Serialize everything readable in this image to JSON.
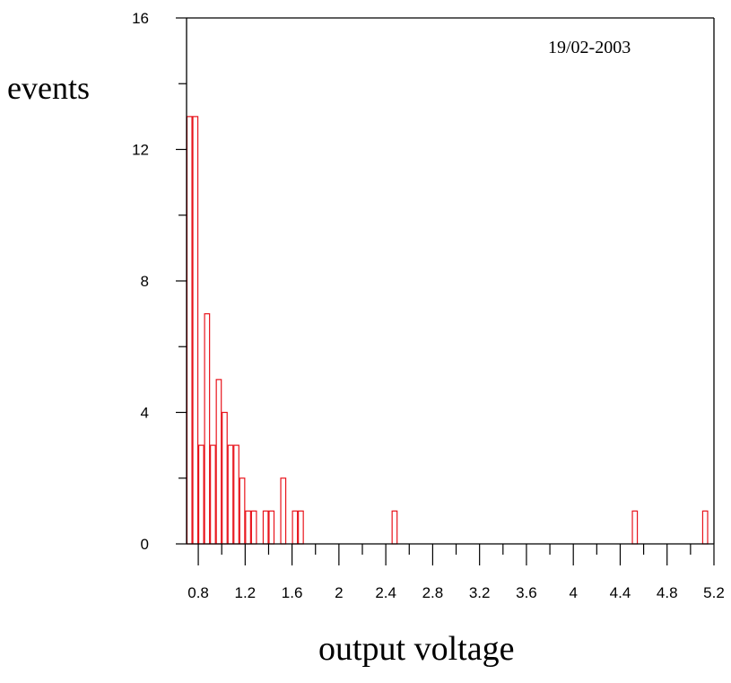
{
  "chart_data": {
    "type": "bar",
    "title": "",
    "annotation": "19/02-2003",
    "xlabel": "output voltage",
    "ylabel": "events",
    "xlim": [
      0.7,
      5.2
    ],
    "ylim": [
      0,
      16
    ],
    "bin_width": 0.05,
    "x_ticks_labeled": [
      "0.8",
      "1.2",
      "1.6",
      "2",
      "2.4",
      "2.8",
      "3.2",
      "3.6",
      "4",
      "4.4",
      "4.8",
      "5.2"
    ],
    "x_tick_values": [
      0.8,
      1.2,
      1.6,
      2.0,
      2.4,
      2.8,
      3.2,
      3.6,
      4.0,
      4.4,
      4.8,
      5.2
    ],
    "y_ticks_labeled": [
      "0",
      "4",
      "8",
      "12",
      "16"
    ],
    "y_tick_values": [
      0,
      4,
      8,
      12,
      16
    ],
    "bar_color": "#e8141c",
    "bins": [
      {
        "x": 0.7,
        "count": 13
      },
      {
        "x": 0.75,
        "count": 13
      },
      {
        "x": 0.8,
        "count": 3
      },
      {
        "x": 0.85,
        "count": 7
      },
      {
        "x": 0.9,
        "count": 3
      },
      {
        "x": 0.95,
        "count": 5
      },
      {
        "x": 1.0,
        "count": 4
      },
      {
        "x": 1.05,
        "count": 3
      },
      {
        "x": 1.1,
        "count": 3
      },
      {
        "x": 1.15,
        "count": 2
      },
      {
        "x": 1.2,
        "count": 1
      },
      {
        "x": 1.25,
        "count": 1
      },
      {
        "x": 1.3,
        "count": 0
      },
      {
        "x": 1.35,
        "count": 1
      },
      {
        "x": 1.4,
        "count": 1
      },
      {
        "x": 1.5,
        "count": 2
      },
      {
        "x": 1.6,
        "count": 1
      },
      {
        "x": 1.65,
        "count": 1
      },
      {
        "x": 2.45,
        "count": 1
      },
      {
        "x": 4.5,
        "count": 1
      },
      {
        "x": 5.1,
        "count": 1
      }
    ]
  }
}
